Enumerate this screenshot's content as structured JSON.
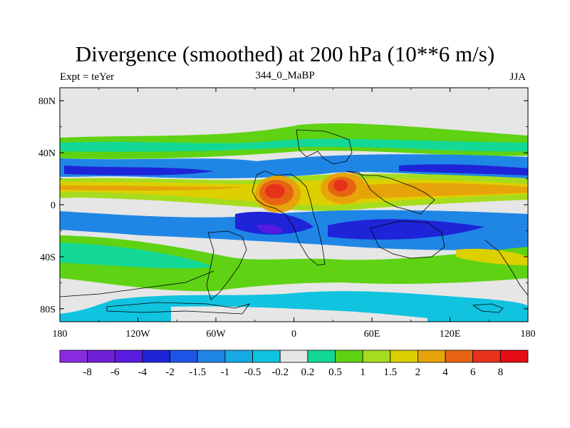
{
  "chart_data": {
    "type": "heatmap",
    "title": "Divergence (smoothed) at 200 hPa (10**6 m/s)",
    "subtitle_left": "Expt = teYer",
    "subtitle_center": "344_0_MaBP",
    "subtitle_right": "JJA",
    "x_range": [
      -180,
      180
    ],
    "y_range": [
      -90,
      90
    ],
    "x_ticks": [
      {
        "value": -180,
        "label": "180"
      },
      {
        "value": -120,
        "label": "120W"
      },
      {
        "value": -60,
        "label": "60W"
      },
      {
        "value": 0,
        "label": "0"
      },
      {
        "value": 60,
        "label": "60E"
      },
      {
        "value": 120,
        "label": "120E"
      },
      {
        "value": 180,
        "label": "180"
      }
    ],
    "y_ticks": [
      {
        "value": 80,
        "label": "80N"
      },
      {
        "value": 40,
        "label": "40N"
      },
      {
        "value": 0,
        "label": "0"
      },
      {
        "value": -40,
        "label": "40S"
      },
      {
        "value": -80,
        "label": "80S"
      }
    ],
    "colorbar": {
      "labels": [
        "-8",
        "-6",
        "-4",
        "-2",
        "-1.5",
        "-1",
        "-0.5",
        "-0.2",
        "0.2",
        "0.5",
        "1",
        "1.5",
        "2",
        "4",
        "6",
        "8"
      ],
      "colors": [
        "#8a2be2",
        "#6f1fd6",
        "#5a1be0",
        "#1e24d8",
        "#1f55e6",
        "#1f86e6",
        "#16a9e3",
        "#10c3df",
        "#e6e6e6",
        "#13d896",
        "#5fd214",
        "#a6dc1e",
        "#dcd000",
        "#e6a40a",
        "#e86414",
        "#e6321a",
        "#e60e14"
      ]
    },
    "background_color": "#e6e6e6"
  }
}
